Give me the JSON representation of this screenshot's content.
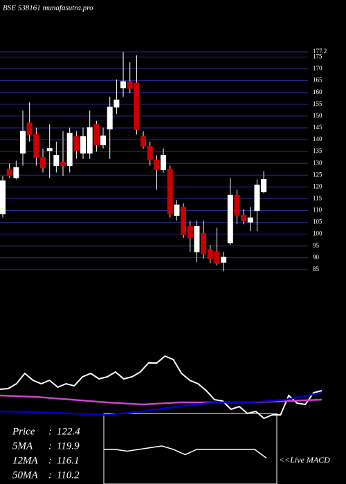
{
  "chart_data": {
    "type": "candlestick",
    "title": "BSE 538161 munafasutra.pro",
    "ylim": [
      83.5,
      177.2
    ],
    "yticks": [
      85,
      90,
      95,
      100,
      105,
      110,
      115,
      120,
      125,
      130,
      135,
      140,
      145,
      150,
      155,
      160,
      165,
      170,
      175,
      177.2
    ],
    "grid": true,
    "grid_color": "#2a2a9a",
    "up_color": "#ffffff",
    "down_color": "#cc0000",
    "open": [
      108.6,
      127.6,
      123.9,
      134.3,
      147.1,
      142.2,
      132.5,
      135.4,
      129.0,
      130.5,
      129.0,
      141.3,
      134.3,
      134.3,
      146.5,
      137.8,
      144.5,
      153.8,
      162.0,
      164.6,
      164.0,
      141.3,
      137.2,
      131.4,
      127.3,
      127.6,
      107.9,
      111.5,
      103.3,
      92.5,
      100.4,
      93.4,
      92.5,
      88.1,
      96.3,
      116.5,
      108.0,
      105.1,
      110.0,
      117.9
    ],
    "high": [
      124.6,
      129.9,
      131.1,
      152.4,
      155.9,
      145.1,
      136.3,
      146.5,
      139.2,
      143.6,
      145.1,
      143.6,
      145.1,
      152.4,
      148.0,
      145.1,
      158.2,
      165.5,
      177.2,
      172.8,
      175.7,
      143.6,
      139.2,
      133.4,
      136.3,
      129.0,
      114.4,
      113.0,
      105.7,
      105.7,
      105.7,
      95.4,
      102.7,
      92.5,
      123.8,
      118.8,
      110.6,
      111.5,
      123.2,
      126.7
    ],
    "low": [
      107.1,
      123.8,
      123.2,
      129.0,
      139.2,
      129.0,
      126.1,
      123.8,
      126.1,
      124.6,
      126.1,
      131.9,
      131.9,
      131.9,
      134.9,
      136.3,
      131.9,
      150.9,
      158.2,
      159.7,
      142.2,
      136.3,
      129.0,
      118.8,
      126.1,
      107.1,
      105.7,
      98.4,
      92.5,
      88.1,
      89.6,
      87.6,
      86.7,
      84.3,
      95.4,
      104.2,
      104.2,
      101.3,
      101.3,
      117.3
    ],
    "close": [
      122.6,
      124.6,
      128.2,
      143.6,
      142.2,
      132.5,
      128.1,
      136.3,
      133.4,
      129.0,
      142.8,
      135.4,
      141.3,
      145.1,
      137.8,
      141.6,
      153.8,
      156.8,
      164.6,
      161.7,
      144.2,
      137.2,
      131.4,
      127.3,
      133.4,
      108.6,
      112.4,
      99.8,
      98.4,
      103.3,
      91.6,
      89.6,
      87.6,
      90.2,
      116.5,
      108.0,
      105.7,
      106.9,
      120.8,
      123.2
    ],
    "indicator": {
      "ylim": [
        -20,
        100
      ],
      "series": [
        {
          "color": "#ffffff",
          "values": [
            37,
            38,
            45,
            60,
            50,
            45,
            50,
            40,
            45,
            42,
            55,
            60,
            52,
            55,
            62,
            52,
            55,
            62,
            75,
            75,
            85,
            80,
            60,
            50,
            45,
            35,
            22,
            20,
            8,
            12,
            2,
            5,
            -5,
            0,
            0,
            28,
            17,
            15,
            32,
            35
          ]
        },
        {
          "color": "#cc44cc",
          "values": [
            28,
            26,
            22,
            18,
            15,
            18,
            18,
            18,
            20,
            22
          ]
        },
        {
          "color": "#0000cc",
          "values": [
            5,
            4,
            2,
            0,
            5,
            12,
            18,
            18,
            22,
            32
          ]
        }
      ]
    },
    "macd": {
      "ylim": [
        -20,
        20
      ],
      "label": "<<Live MACD",
      "values": [
        0,
        0,
        -1,
        0,
        1,
        2,
        0,
        -3,
        0,
        0,
        0,
        0,
        0,
        0,
        -5
      ]
    },
    "stats": [
      {
        "label": "Price",
        "value": 122.4
      },
      {
        "label": "5MA",
        "value": 119.9
      },
      {
        "label": "12MA",
        "value": 116.1
      },
      {
        "label": "50MA",
        "value": 110.2
      }
    ],
    "stats_separator": ":"
  }
}
